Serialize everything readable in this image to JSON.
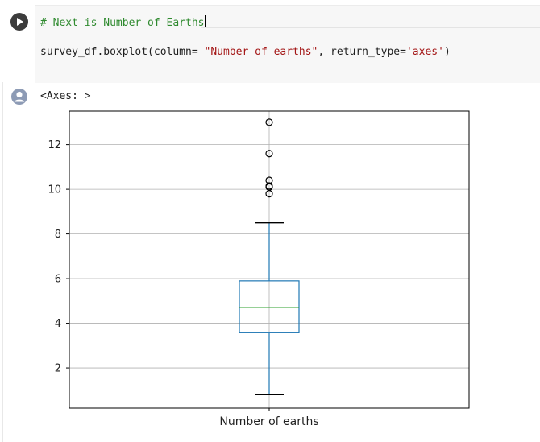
{
  "code_cell": {
    "comment": "# Next is Number of Earths",
    "code_prefix": "survey_df.boxplot(column= ",
    "code_string": "\"Number of earths\"",
    "code_mid": ", return_type=",
    "code_string2": "'axes'",
    "code_suffix": ")"
  },
  "output": {
    "text": "<Axes: >"
  },
  "chart_data": {
    "type": "boxplot",
    "categories": [
      "Number of earths"
    ],
    "xlabel": "",
    "ylabel": "",
    "ylim": [
      0.2,
      13.5
    ],
    "yticks": [
      2,
      4,
      6,
      8,
      10,
      12
    ],
    "grid": true,
    "box": {
      "whisker_low": 0.8,
      "q1": 3.6,
      "median": 4.7,
      "q3": 5.9,
      "whisker_high": 8.5
    },
    "outliers": [
      9.8,
      10.1,
      10.15,
      10.4,
      11.6,
      13.0
    ],
    "colors": {
      "box": "#1f77b4",
      "median": "#2ca02c",
      "whisker": "#1f77b4",
      "cap": "#000000",
      "outlier": "#000000",
      "grid": "#b0b0b0"
    }
  }
}
